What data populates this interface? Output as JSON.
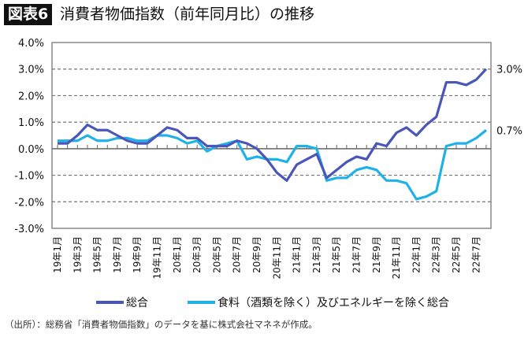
{
  "title": {
    "badge": "図表6",
    "text": "消費者物価指数（前年同月比）の推移"
  },
  "source": "（出所）：総務省「消費者物価指数」のデータを基に株式会社マネネが作成。",
  "chart_data": {
    "type": "line",
    "ylim": [
      -3.0,
      4.0
    ],
    "yticks": [
      "4.0%",
      "3.0%",
      "2.0%",
      "1.0%",
      "0.0%",
      "-1.0%",
      "-2.0%",
      "-3.0%"
    ],
    "ytick_values": [
      4,
      3,
      2,
      1,
      0,
      -1,
      -2,
      -3
    ],
    "grid": "horizontal dashed",
    "x": [
      "19年1月",
      "19年2月",
      "19年3月",
      "19年4月",
      "19年5月",
      "19年6月",
      "19年7月",
      "19年8月",
      "19年9月",
      "19年10月",
      "19年11月",
      "19年12月",
      "20年1月",
      "20年2月",
      "20年3月",
      "20年4月",
      "20年5月",
      "20年6月",
      "20年7月",
      "20年8月",
      "20年9月",
      "20年10月",
      "20年11月",
      "20年12月",
      "21年1月",
      "21年2月",
      "21年3月",
      "21年4月",
      "21年5月",
      "21年6月",
      "21年7月",
      "21年8月",
      "21年9月",
      "21年10月",
      "21年11月",
      "21年12月",
      "22年1月",
      "22年2月",
      "22年3月",
      "22年4月",
      "22年5月",
      "22年6月",
      "22年7月",
      "22年8月"
    ],
    "xtick_labels": [
      "19年1月",
      "19年3月",
      "19年5月",
      "19年7月",
      "19年9月",
      "19年11月",
      "20年1月",
      "20年3月",
      "20年5月",
      "20年7月",
      "20年9月",
      "20年11月",
      "21年1月",
      "21年3月",
      "21年5月",
      "21年7月",
      "21年9月",
      "21年11月",
      "22年1月",
      "22年3月",
      "22年5月",
      "22年7月"
    ],
    "series": [
      {
        "name": "総合",
        "color": "#4a56b8",
        "values": [
          0.2,
          0.2,
          0.5,
          0.9,
          0.7,
          0.7,
          0.5,
          0.3,
          0.2,
          0.2,
          0.5,
          0.8,
          0.7,
          0.4,
          0.4,
          0.1,
          0.1,
          0.1,
          0.3,
          0.2,
          0.0,
          -0.4,
          -0.9,
          -1.2,
          -0.6,
          -0.4,
          -0.2,
          -1.1,
          -0.8,
          -0.5,
          -0.3,
          -0.4,
          0.2,
          0.1,
          0.6,
          0.8,
          0.5,
          0.9,
          1.2,
          2.5,
          2.5,
          2.4,
          2.6,
          3.0
        ],
        "end_label": "3.0%"
      },
      {
        "name": "食料（酒類を除く）及びエネルギーを除く総合",
        "color": "#1fb1e8",
        "values": [
          0.3,
          0.3,
          0.3,
          0.5,
          0.3,
          0.3,
          0.4,
          0.4,
          0.3,
          0.3,
          0.5,
          0.5,
          0.4,
          0.2,
          0.3,
          -0.1,
          0.1,
          0.2,
          0.3,
          -0.4,
          -0.3,
          -0.4,
          -0.4,
          -0.5,
          0.1,
          0.1,
          0.0,
          -1.2,
          -1.1,
          -1.1,
          -0.8,
          -0.7,
          -0.8,
          -1.2,
          -1.2,
          -1.3,
          -1.9,
          -1.8,
          -1.6,
          0.1,
          0.2,
          0.2,
          0.4,
          0.7
        ],
        "end_label": "0.7%"
      }
    ],
    "legend": "bottom"
  }
}
